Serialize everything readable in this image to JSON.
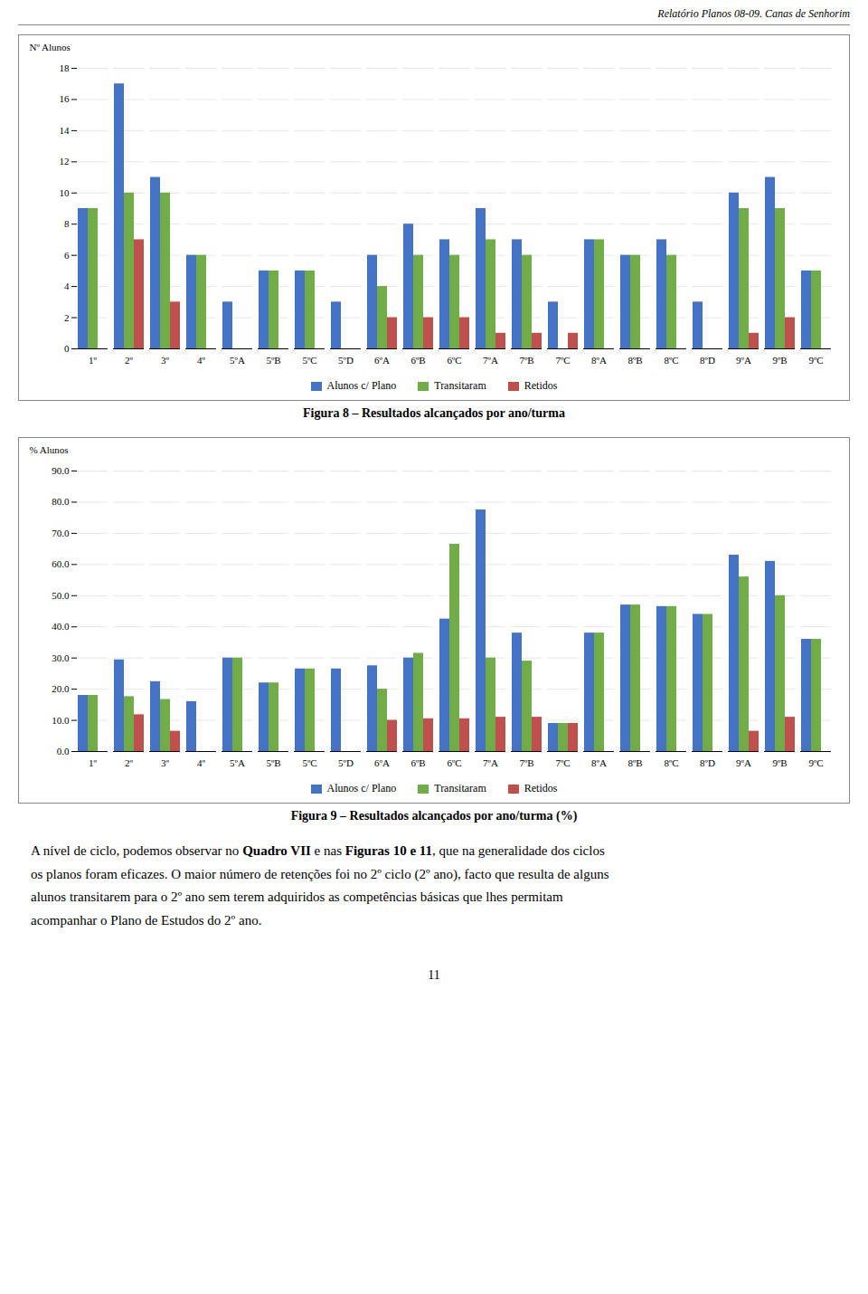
{
  "header": "Relatório Planos 08-09. Canas de Senhorim",
  "chart_data": [
    {
      "type": "bar",
      "title": "Figura 8 – Resultados alcançados por ano/turma",
      "ylabel": "Nº Alunos",
      "categories": [
        "1º",
        "2º",
        "3º",
        "4º",
        "5ºA",
        "5ºB",
        "5ºC",
        "5ºD",
        "6ºA",
        "6ºB",
        "6ºC",
        "7ºA",
        "7ºB",
        "7ºC",
        "8ºA",
        "8ºB",
        "8ºC",
        "8ºD",
        "9ºA",
        "9ºB",
        "9ºC"
      ],
      "series": [
        {
          "name": "Alunos c/ Plano",
          "color": "#4472C4",
          "values": [
            9,
            17,
            11,
            6,
            3,
            5,
            5,
            3,
            6,
            8,
            7,
            9,
            7,
            3,
            7,
            6,
            7,
            3,
            10,
            11,
            5
          ]
        },
        {
          "name": "Transitaram",
          "color": "#70AD47",
          "values": [
            9,
            10,
            10,
            6,
            0,
            5,
            5,
            0,
            4,
            6,
            6,
            7,
            6,
            0,
            7,
            6,
            6,
            0,
            9,
            9,
            5
          ]
        },
        {
          "name": "Retidos",
          "color": "#C0504D",
          "values": [
            0,
            7,
            3,
            0,
            0,
            0,
            0,
            0,
            2,
            2,
            2,
            1,
            1,
            1,
            0,
            0,
            0,
            0,
            1,
            2,
            0
          ]
        }
      ],
      "ylim": [
        0,
        18
      ],
      "yticks": [
        0,
        2,
        4,
        6,
        8,
        10,
        12,
        14,
        16,
        18
      ],
      "grid": true,
      "legend": "bottom"
    },
    {
      "type": "bar",
      "title": "Figura 9 – Resultados alcançados por ano/turma (%)",
      "ylabel": "% Alunos",
      "categories": [
        "1º",
        "2º",
        "3º",
        "4º",
        "5ºA",
        "5ºB",
        "5ºC",
        "5ºD",
        "6ºA",
        "6ºB",
        "6ºC",
        "7ºA",
        "7ºB",
        "7ºC",
        "8ºA",
        "8ºB",
        "8ºC",
        "8ºD",
        "9ºA",
        "9ºB",
        "9ºC"
      ],
      "series": [
        {
          "name": "Alunos c/ Plano",
          "color": "#4472C4",
          "values": [
            18.0,
            29.4,
            22.4,
            16.0,
            30.0,
            22.0,
            26.5,
            26.5,
            27.5,
            30.0,
            42.5,
            77.5,
            38.0,
            9.0,
            38.0,
            47.0,
            46.5,
            44.0,
            63.0,
            61.0,
            36.0
          ]
        },
        {
          "name": "Transitaram",
          "color": "#70AD47",
          "values": [
            18.0,
            17.6,
            16.7,
            0,
            30.0,
            22.0,
            26.5,
            0,
            20.0,
            31.5,
            66.5,
            30.0,
            29.0,
            9.0,
            38.0,
            47.0,
            46.5,
            44.0,
            56.0,
            50.0,
            36.0
          ]
        },
        {
          "name": "Retidos",
          "color": "#C0504D",
          "values": [
            0,
            11.8,
            6.5,
            0,
            0,
            0,
            0,
            0,
            10.0,
            10.5,
            10.5,
            11.0,
            11.0,
            9.0,
            0,
            0,
            0,
            0,
            6.5,
            11.0,
            0
          ]
        }
      ],
      "ylim": [
        0,
        90
      ],
      "yticks": [
        {
          "value": 0,
          "label": "0.0"
        },
        {
          "value": 10,
          "label": "10.0"
        },
        {
          "value": 20,
          "label": "20.0"
        },
        {
          "value": 30,
          "label": "30.0"
        },
        {
          "value": 40,
          "label": "40.0"
        },
        {
          "value": 50,
          "label": "50.0"
        },
        {
          "value": 60,
          "label": "60.0"
        },
        {
          "value": 70,
          "label": "70.0"
        },
        {
          "value": 80,
          "label": "80.0"
        },
        {
          "value": 90,
          "label": "90.0"
        }
      ],
      "grid": true,
      "legend": "bottom"
    }
  ],
  "paragraph": [
    [
      {
        "text": "A nível de ciclo, podemos observar no ",
        "bold": false
      },
      {
        "text": "Quadro VII",
        "bold": true
      },
      {
        "text": " e nas ",
        "bold": false
      },
      {
        "text": "Figuras 10 e 11",
        "bold": true
      },
      {
        "text": ", que na generalidade dos ciclos",
        "bold": false
      }
    ],
    "os planos foram eficazes. O maior número de retenções foi no 2º ciclo (2º ano), facto que resulta de alguns",
    "alunos transitarem para o 2º ano sem terem adquiridos as competências básicas que lhes permitam",
    "acompanhar o Plano de Estudos do 2º ano."
  ],
  "page_number": "11"
}
